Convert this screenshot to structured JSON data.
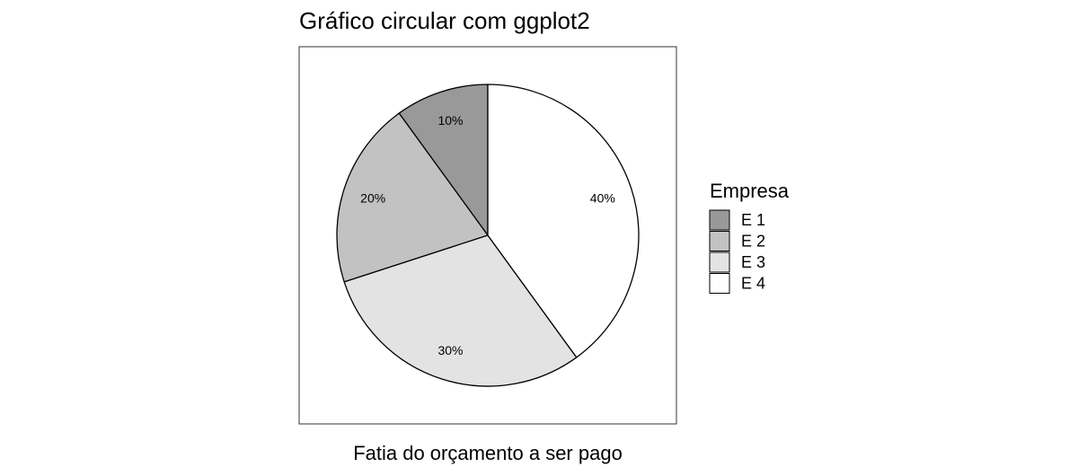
{
  "chart_data": {
    "type": "pie",
    "title": "Gráfico circular com ggplot2",
    "xlabel": "Fatia do orçamento a ser pago",
    "legend": {
      "title": "Empresa",
      "position": "right"
    },
    "categories": [
      "E 1",
      "E 2",
      "E 3",
      "E 4"
    ],
    "values": [
      10,
      20,
      30,
      40
    ],
    "labels": [
      "10%",
      "20%",
      "30%",
      "40%"
    ],
    "colors": [
      "#999999",
      "#c2c2c2",
      "#e3e3e3",
      "#ffffff"
    ],
    "direction": "clockwise",
    "start": "top"
  }
}
